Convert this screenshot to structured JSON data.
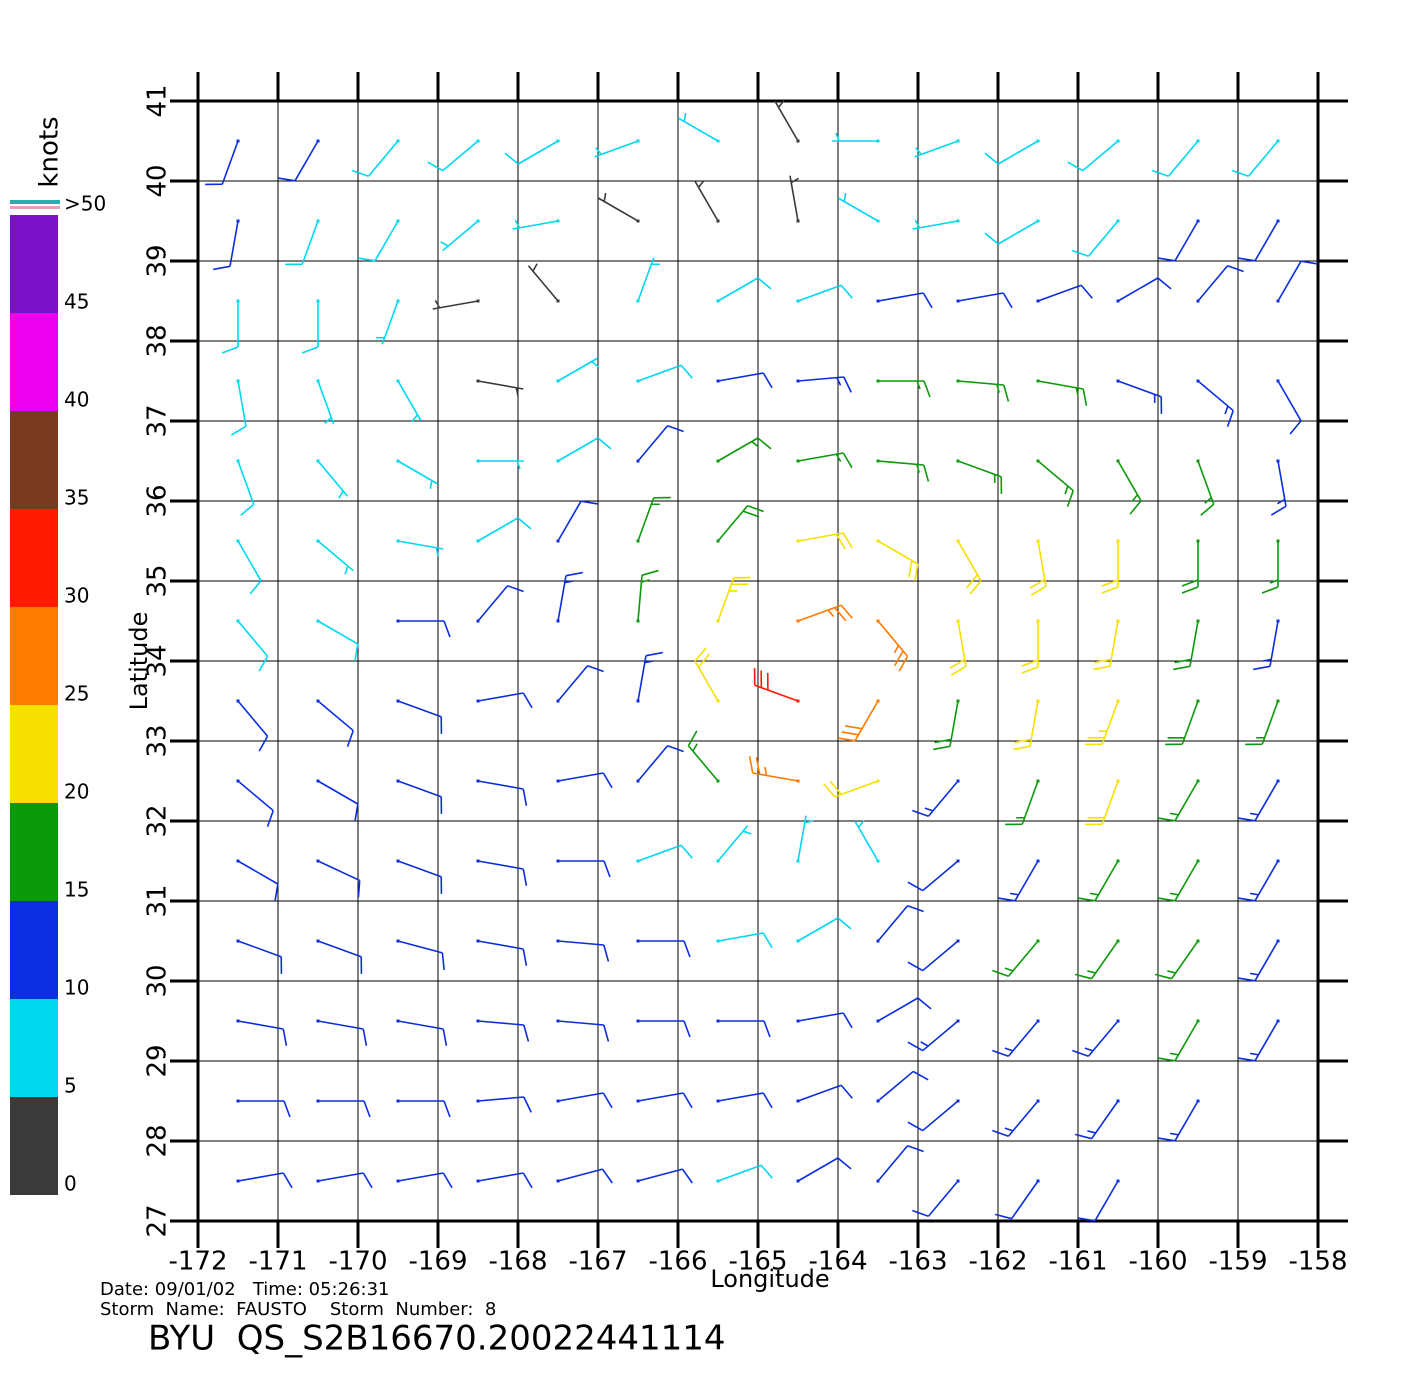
{
  "chart_data": {
    "type": "wind_barbs",
    "title": "BYU  QS_S2B16670.20022441114",
    "date_line": "Date: 09/01/02   Time: 05:26:31",
    "storm_line": "Storm  Name:  FAUSTO    Storm  Number:  8",
    "x_label": "Longitude",
    "y_label": "Latitude",
    "xlim": [
      -172,
      -158
    ],
    "ylim": [
      27,
      41
    ],
    "xticks": [
      -172,
      -171,
      -170,
      -169,
      -168,
      -167,
      -166,
      -165,
      -164,
      -163,
      -162,
      -161,
      -160,
      -159,
      -158
    ],
    "yticks": [
      27,
      28,
      29,
      30,
      31,
      32,
      33,
      34,
      35,
      36,
      37,
      38,
      39,
      40,
      41
    ],
    "grid": true,
    "colorbar": {
      "label": "knots",
      "lim": [
        0,
        50
      ],
      "ticks": [
        0,
        5,
        10,
        15,
        20,
        25,
        30,
        35,
        40,
        45,
        {
          "value": 50,
          "label": ">50"
        }
      ],
      "colors": [
        "#3a3a3a",
        "#00d8f0",
        "#0a2ee0",
        "#0a9a0a",
        "#f6e000",
        "#ff7a00",
        "#ff1a00",
        "#7a3a20",
        "#ee00ee",
        "#7a10c8"
      ]
    },
    "lons": [
      -171.5,
      -170.5,
      -169.5,
      -168.5,
      -167.5,
      -166.5,
      -165.5,
      -164.5,
      -163.5,
      -162.5,
      -161.5,
      -160.5,
      -159.5,
      -158.5
    ],
    "lats": [
      40.5,
      39.5,
      38.5,
      37.5,
      36.5,
      35.5,
      34.5,
      33.5,
      32.5,
      31.5,
      30.5,
      29.5,
      28.5,
      27.5
    ],
    "speed": [
      [
        11,
        11,
        9,
        8,
        8,
        7,
        6,
        4,
        6,
        7,
        8,
        9,
        8,
        8
      ],
      [
        10,
        9,
        8,
        7,
        5,
        4,
        3,
        3,
        5,
        6,
        8,
        9,
        10,
        11
      ],
      [
        9,
        8,
        6,
        4,
        3,
        6,
        8,
        9,
        11,
        12,
        12,
        12,
        12,
        12
      ],
      [
        9,
        7,
        5,
        3,
        6,
        9,
        11,
        13,
        15,
        16,
        15,
        14,
        13,
        12
      ],
      [
        8,
        7,
        6,
        6,
        9,
        12,
        15,
        17,
        17,
        17,
        17,
        16,
        15,
        13
      ],
      [
        8,
        7,
        6,
        8,
        11,
        15,
        19,
        22,
        21,
        20,
        21,
        21,
        18,
        15
      ],
      [
        9,
        9,
        10,
        11,
        13,
        17,
        23,
        27,
        26,
        20,
        21,
        22,
        18,
        14
      ],
      [
        10,
        11,
        12,
        12,
        12,
        14,
        22,
        31,
        28,
        18,
        21,
        23,
        19,
        15
      ],
      [
        11,
        12,
        12,
        12,
        11,
        11,
        17,
        26,
        22,
        14,
        16,
        20,
        17,
        14
      ],
      [
        12,
        12,
        12,
        11,
        10,
        9,
        7,
        6,
        6,
        12,
        14,
        17,
        16,
        14
      ],
      [
        12,
        12,
        12,
        12,
        11,
        10,
        9,
        8,
        10,
        12,
        15,
        16,
        16,
        14
      ],
      [
        12,
        12,
        12,
        12,
        11,
        11,
        10,
        11,
        12,
        13,
        13,
        14,
        15,
        14
      ],
      [
        11,
        12,
        12,
        11,
        11,
        11,
        11,
        12,
        12,
        12,
        13,
        13,
        14,
        null
      ],
      [
        10,
        11,
        11,
        10,
        10,
        10,
        9,
        10,
        11,
        11,
        12,
        12,
        null,
        null
      ]
    ],
    "direction": [
      [
        200,
        210,
        220,
        230,
        240,
        250,
        300,
        330,
        270,
        250,
        240,
        230,
        220,
        220
      ],
      [
        190,
        200,
        210,
        230,
        260,
        300,
        330,
        350,
        300,
        260,
        240,
        220,
        210,
        210
      ],
      [
        180,
        180,
        200,
        260,
        320,
        20,
        60,
        70,
        80,
        80,
        70,
        60,
        40,
        30
      ],
      [
        170,
        160,
        150,
        100,
        60,
        70,
        80,
        85,
        90,
        95,
        100,
        110,
        130,
        150
      ],
      [
        160,
        140,
        120,
        90,
        60,
        40,
        60,
        80,
        95,
        110,
        130,
        150,
        160,
        170
      ],
      [
        150,
        130,
        100,
        60,
        30,
        20,
        40,
        80,
        120,
        150,
        170,
        180,
        180,
        180
      ],
      [
        140,
        120,
        90,
        40,
        10,
        5,
        20,
        70,
        140,
        170,
        180,
        190,
        190,
        190
      ],
      [
        140,
        130,
        110,
        80,
        40,
        10,
        330,
        290,
        210,
        190,
        190,
        200,
        200,
        200
      ],
      [
        130,
        120,
        110,
        100,
        80,
        40,
        320,
        280,
        250,
        220,
        200,
        200,
        210,
        210
      ],
      [
        120,
        115,
        110,
        100,
        90,
        70,
        40,
        10,
        330,
        230,
        210,
        210,
        210,
        210
      ],
      [
        110,
        110,
        105,
        100,
        95,
        90,
        80,
        60,
        40,
        230,
        220,
        215,
        215,
        210
      ],
      [
        100,
        100,
        100,
        95,
        95,
        90,
        90,
        80,
        60,
        230,
        220,
        220,
        210,
        210
      ],
      [
        90,
        90,
        90,
        85,
        80,
        80,
        80,
        70,
        50,
        230,
        220,
        215,
        210,
        null
      ],
      [
        80,
        80,
        80,
        80,
        75,
        75,
        70,
        60,
        40,
        220,
        215,
        210,
        null,
        null
      ]
    ]
  }
}
